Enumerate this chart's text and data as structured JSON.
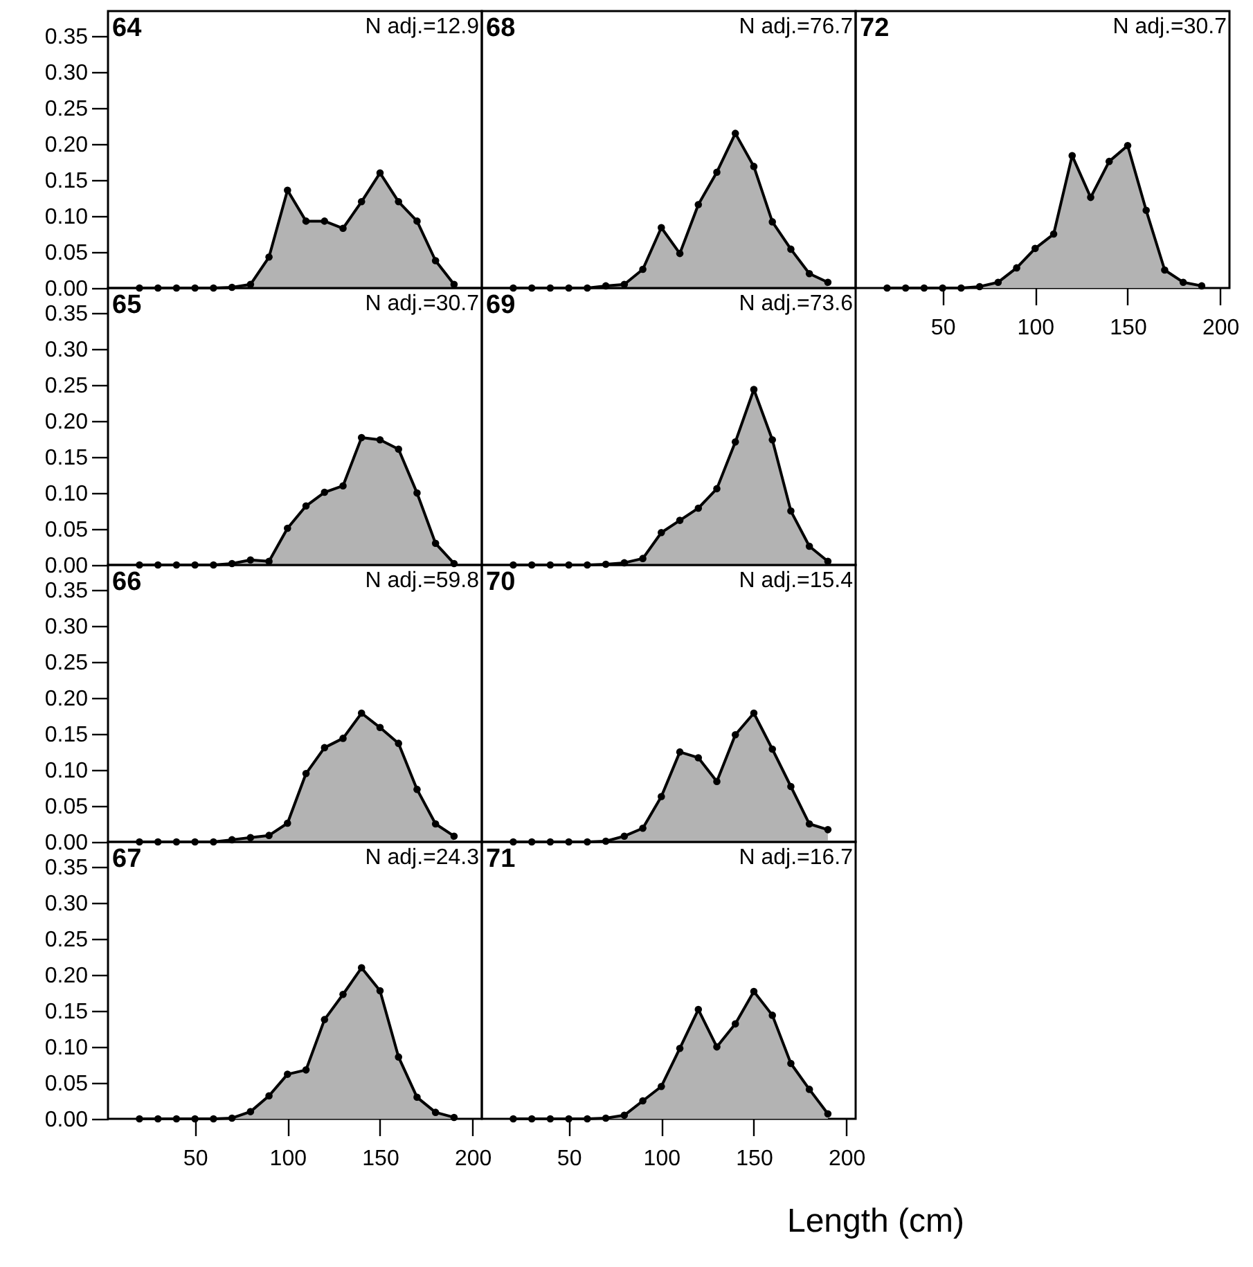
{
  "chart_data": [
    {
      "type": "area",
      "title": "64",
      "annotations": [
        "N adj.=12.9"
      ],
      "color": "#b3b3b3",
      "marker": "circle",
      "line_style": "solid",
      "tick_labels": "y",
      "xlim": [
        3,
        205
      ],
      "ylim": [
        0,
        0.385
      ],
      "xticks": [
        50,
        100,
        150,
        200
      ],
      "yticks": [
        {
          "value": 0,
          "label": "0.00"
        },
        0.05,
        {
          "value": 0.1,
          "label": "0.10"
        },
        0.15,
        {
          "value": 0.2,
          "label": "0.20"
        },
        0.25,
        {
          "value": 0.3,
          "label": "0.30"
        },
        0.35
      ],
      "x": [
        20,
        30,
        40,
        50,
        60,
        70,
        80,
        90,
        100,
        110,
        120,
        130,
        140,
        150,
        160,
        170,
        180,
        190
      ],
      "values": [
        0,
        0,
        0,
        0,
        0,
        0.001,
        0.005,
        0.043,
        0.136,
        0.093,
        0.093,
        0.083,
        0.12,
        0.16,
        0.12,
        0.093,
        0.038,
        0.005
      ]
    },
    {
      "type": "area",
      "title": "65",
      "annotations": [
        "N adj.=30.7"
      ],
      "color": "#b3b3b3",
      "marker": "circle",
      "line_style": "solid",
      "tick_labels": "y",
      "xlim": [
        3,
        205
      ],
      "ylim": [
        0,
        0.385
      ],
      "xticks": [
        50,
        100,
        150,
        200
      ],
      "yticks": [
        {
          "value": 0,
          "label": "0.00"
        },
        0.05,
        {
          "value": 0.1,
          "label": "0.10"
        },
        0.15,
        {
          "value": 0.2,
          "label": "0.20"
        },
        0.25,
        {
          "value": 0.3,
          "label": "0.30"
        },
        0.35
      ],
      "x": [
        20,
        30,
        40,
        50,
        60,
        70,
        80,
        90,
        100,
        110,
        120,
        130,
        140,
        150,
        160,
        170,
        180,
        190
      ],
      "values": [
        0,
        0,
        0,
        0,
        0,
        0.002,
        0.007,
        0.005,
        0.051,
        0.082,
        0.101,
        0.11,
        0.177,
        0.174,
        0.161,
        0.1,
        0.03,
        0.002
      ]
    },
    {
      "type": "area",
      "title": "66",
      "annotations": [
        "N adj.=59.8"
      ],
      "color": "#b3b3b3",
      "marker": "circle",
      "line_style": "solid",
      "tick_labels": "y",
      "xlim": [
        3,
        205
      ],
      "ylim": [
        0,
        0.385
      ],
      "xticks": [
        50,
        100,
        150,
        200
      ],
      "yticks": [
        {
          "value": 0,
          "label": "0.00"
        },
        0.05,
        {
          "value": 0.1,
          "label": "0.10"
        },
        0.15,
        {
          "value": 0.2,
          "label": "0.20"
        },
        0.25,
        {
          "value": 0.3,
          "label": "0.30"
        },
        0.35
      ],
      "x": [
        20,
        30,
        40,
        50,
        60,
        70,
        80,
        90,
        100,
        110,
        120,
        130,
        140,
        150,
        160,
        170,
        180,
        190
      ],
      "values": [
        0,
        0,
        0,
        0,
        0,
        0.003,
        0.006,
        0.009,
        0.026,
        0.095,
        0.131,
        0.144,
        0.179,
        0.159,
        0.137,
        0.073,
        0.025,
        0.008
      ]
    },
    {
      "type": "area",
      "title": "67",
      "annotations": [
        "N adj.=24.3"
      ],
      "color": "#b3b3b3",
      "marker": "circle",
      "line_style": "solid",
      "xlim": [
        3,
        205
      ],
      "ylim": [
        0,
        0.385
      ],
      "xticks": [
        50,
        100,
        150,
        200
      ],
      "yticks": [
        {
          "value": 0,
          "label": "0.00"
        },
        0.05,
        {
          "value": 0.1,
          "label": "0.10"
        },
        0.15,
        {
          "value": 0.2,
          "label": "0.20"
        },
        0.25,
        {
          "value": 0.3,
          "label": "0.30"
        },
        0.35
      ],
      "x": [
        20,
        30,
        40,
        50,
        60,
        70,
        80,
        90,
        100,
        110,
        120,
        130,
        140,
        150,
        160,
        170,
        180,
        190
      ],
      "values": [
        0,
        0,
        0,
        0,
        0,
        0.001,
        0.01,
        0.032,
        0.062,
        0.068,
        0.138,
        0.173,
        0.21,
        0.178,
        0.086,
        0.03,
        0.009,
        0.002
      ]
    },
    {
      "type": "area",
      "title": "68",
      "annotations": [
        "N adj.=76.7"
      ],
      "color": "#b3b3b3",
      "marker": "circle",
      "line_style": "solid",
      "tick_labels": false,
      "xlim": [
        3,
        205
      ],
      "ylim": [
        0,
        0.385
      ],
      "xticks": [
        50,
        100,
        150,
        200
      ],
      "yticks": [
        0,
        0.05,
        0.1,
        0.15,
        0.2,
        0.25,
        0.3,
        0.35
      ],
      "x": [
        20,
        30,
        40,
        50,
        60,
        70,
        80,
        90,
        100,
        110,
        120,
        130,
        140,
        150,
        160,
        170,
        180,
        190
      ],
      "values": [
        0,
        0,
        0,
        0,
        0,
        0.003,
        0.005,
        0.026,
        0.084,
        0.048,
        0.116,
        0.161,
        0.215,
        0.169,
        0.092,
        0.054,
        0.02,
        0.008
      ]
    },
    {
      "type": "area",
      "title": "69",
      "annotations": [
        "N adj.=73.6"
      ],
      "color": "#b3b3b3",
      "marker": "circle",
      "line_style": "solid",
      "tick_labels": false,
      "xlim": [
        3,
        205
      ],
      "ylim": [
        0,
        0.385
      ],
      "xticks": [
        50,
        100,
        150,
        200
      ],
      "yticks": [
        0,
        0.05,
        0.1,
        0.15,
        0.2,
        0.25,
        0.3,
        0.35
      ],
      "x": [
        20,
        30,
        40,
        50,
        60,
        70,
        80,
        90,
        100,
        110,
        120,
        130,
        140,
        150,
        160,
        170,
        180,
        190
      ],
      "values": [
        0,
        0,
        0,
        0,
        0,
        0.001,
        0.003,
        0.009,
        0.045,
        0.062,
        0.079,
        0.106,
        0.171,
        0.244,
        0.174,
        0.075,
        0.026,
        0.005
      ]
    },
    {
      "type": "area",
      "title": "70",
      "annotations": [
        "N adj.=15.4"
      ],
      "color": "#b3b3b3",
      "marker": "circle",
      "line_style": "solid",
      "tick_labels": false,
      "xlim": [
        3,
        205
      ],
      "ylim": [
        0,
        0.385
      ],
      "xticks": [
        50,
        100,
        150,
        200
      ],
      "yticks": [
        0,
        0.05,
        0.1,
        0.15,
        0.2,
        0.25,
        0.3,
        0.35
      ],
      "x": [
        20,
        30,
        40,
        50,
        60,
        70,
        80,
        90,
        100,
        110,
        120,
        130,
        140,
        150,
        160,
        170,
        180,
        190
      ],
      "values": [
        0,
        0,
        0,
        0,
        0,
        0.001,
        0.008,
        0.019,
        0.063,
        0.125,
        0.117,
        0.084,
        0.149,
        0.179,
        0.129,
        0.077,
        0.025,
        0.017
      ]
    },
    {
      "type": "area",
      "title": "71",
      "annotations": [
        "N adj.=16.7"
      ],
      "xlabel": "Length (cm)",
      "color": "#b3b3b3",
      "marker": "circle",
      "line_style": "solid",
      "tick_labels": "x",
      "xlim": [
        3,
        205
      ],
      "ylim": [
        0,
        0.385
      ],
      "xticks": [
        50,
        100,
        150,
        200
      ],
      "yticks": [
        0,
        0.05,
        0.1,
        0.15,
        0.2,
        0.25,
        0.3,
        0.35
      ],
      "x": [
        20,
        30,
        40,
        50,
        60,
        70,
        80,
        90,
        100,
        110,
        120,
        130,
        140,
        150,
        160,
        170,
        180,
        190
      ],
      "values": [
        0,
        0,
        0,
        0,
        0,
        0.001,
        0.005,
        0.025,
        0.045,
        0.098,
        0.152,
        0.1,
        0.132,
        0.177,
        0.144,
        0.077,
        0.041,
        0.007
      ]
    },
    {
      "type": "area",
      "title": "72",
      "annotations": [
        "N adj.=30.7"
      ],
      "color": "#b3b3b3",
      "marker": "circle",
      "line_style": "solid",
      "tick_labels": "x",
      "xlim": [
        3,
        205
      ],
      "ylim": [
        0,
        0.385
      ],
      "xticks": [
        50,
        100,
        150,
        200
      ],
      "yticks": [
        0,
        0.05,
        0.1,
        0.15,
        0.2,
        0.25,
        0.3,
        0.35
      ],
      "x": [
        20,
        30,
        40,
        50,
        60,
        70,
        80,
        90,
        100,
        110,
        120,
        130,
        140,
        150,
        160,
        170,
        180,
        190
      ],
      "values": [
        0,
        0,
        0,
        0,
        0,
        0.002,
        0.008,
        0.028,
        0.055,
        0.075,
        0.184,
        0.126,
        0.176,
        0.198,
        0.108,
        0.025,
        0.008,
        0.003
      ]
    }
  ]
}
